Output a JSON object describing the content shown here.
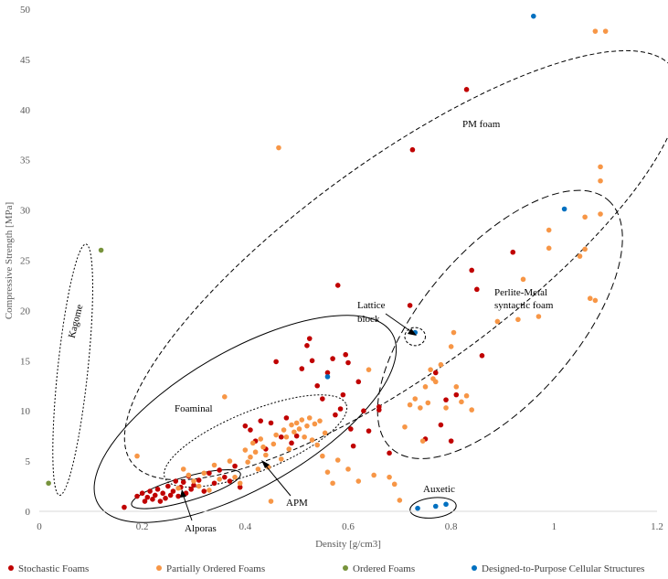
{
  "chart_data": {
    "type": "scatter",
    "xlabel": "Density [g/cm3]",
    "ylabel": "Compressive Strength [MPa]",
    "xlim": [
      0,
      1.2
    ],
    "ylim": [
      0,
      50
    ],
    "x_ticks": [
      "0",
      "0.2",
      "0.4",
      "0.6",
      "0.8",
      "1",
      "1.2"
    ],
    "y_ticks": [
      "0",
      "5",
      "10",
      "15",
      "20",
      "25",
      "30",
      "35",
      "40",
      "45",
      "50"
    ],
    "grid": false,
    "legend_position": "bottom",
    "series": [
      {
        "name": "Stochastic Foams",
        "color": "#C00000",
        "points": [
          [
            0.165,
            0.4
          ],
          [
            0.19,
            1.5
          ],
          [
            0.2,
            1.8
          ],
          [
            0.205,
            1.0
          ],
          [
            0.21,
            1.4
          ],
          [
            0.215,
            2.0
          ],
          [
            0.22,
            1.2
          ],
          [
            0.225,
            1.6
          ],
          [
            0.23,
            2.2
          ],
          [
            0.235,
            1.0
          ],
          [
            0.24,
            1.8
          ],
          [
            0.245,
            1.3
          ],
          [
            0.25,
            2.5
          ],
          [
            0.255,
            1.6
          ],
          [
            0.26,
            2.0
          ],
          [
            0.265,
            3.0
          ],
          [
            0.27,
            1.5
          ],
          [
            0.275,
            2.4
          ],
          [
            0.28,
            2.9
          ],
          [
            0.285,
            1.8
          ],
          [
            0.29,
            3.5
          ],
          [
            0.295,
            2.2
          ],
          [
            0.3,
            2.6
          ],
          [
            0.31,
            3.1
          ],
          [
            0.32,
            2.0
          ],
          [
            0.33,
            3.8
          ],
          [
            0.34,
            2.8
          ],
          [
            0.35,
            4.1
          ],
          [
            0.36,
            3.4
          ],
          [
            0.37,
            3.0
          ],
          [
            0.38,
            4.5
          ],
          [
            0.39,
            2.4
          ],
          [
            0.4,
            8.5
          ],
          [
            0.41,
            8.1
          ],
          [
            0.42,
            7.0
          ],
          [
            0.43,
            9.0
          ],
          [
            0.44,
            6.2
          ],
          [
            0.45,
            8.8
          ],
          [
            0.46,
            14.9
          ],
          [
            0.47,
            7.4
          ],
          [
            0.48,
            9.3
          ],
          [
            0.49,
            6.8
          ],
          [
            0.5,
            7.5
          ],
          [
            0.51,
            14.2
          ],
          [
            0.52,
            16.5
          ],
          [
            0.525,
            17.2
          ],
          [
            0.53,
            15.0
          ],
          [
            0.54,
            12.5
          ],
          [
            0.55,
            11.2
          ],
          [
            0.56,
            13.8
          ],
          [
            0.57,
            15.2
          ],
          [
            0.575,
            9.6
          ],
          [
            0.58,
            22.5
          ],
          [
            0.585,
            10.2
          ],
          [
            0.59,
            11.6
          ],
          [
            0.595,
            15.6
          ],
          [
            0.6,
            14.8
          ],
          [
            0.605,
            8.2
          ],
          [
            0.61,
            6.5
          ],
          [
            0.62,
            12.9
          ],
          [
            0.63,
            10.0
          ],
          [
            0.64,
            8.0
          ],
          [
            0.66,
            10.4
          ],
          [
            0.66,
            10.1
          ],
          [
            0.68,
            5.8
          ],
          [
            0.72,
            20.5
          ],
          [
            0.725,
            36.0
          ],
          [
            0.75,
            7.2
          ],
          [
            0.77,
            13.8
          ],
          [
            0.78,
            8.6
          ],
          [
            0.79,
            11.1
          ],
          [
            0.8,
            7.0
          ],
          [
            0.81,
            11.6
          ],
          [
            0.83,
            42.0
          ],
          [
            0.84,
            24.0
          ],
          [
            0.85,
            22.1
          ],
          [
            0.86,
            15.5
          ],
          [
            0.92,
            25.8
          ]
        ]
      },
      {
        "name": "Partially Ordered Foams",
        "color": "#F79646",
        "points": [
          [
            0.19,
            5.5
          ],
          [
            0.27,
            2.3
          ],
          [
            0.28,
            4.2
          ],
          [
            0.29,
            3.6
          ],
          [
            0.3,
            3.0
          ],
          [
            0.31,
            2.5
          ],
          [
            0.32,
            3.8
          ],
          [
            0.33,
            2.1
          ],
          [
            0.34,
            4.6
          ],
          [
            0.35,
            3.2
          ],
          [
            0.36,
            11.4
          ],
          [
            0.37,
            5.0
          ],
          [
            0.38,
            3.4
          ],
          [
            0.39,
            2.8
          ],
          [
            0.4,
            6.1
          ],
          [
            0.405,
            4.9
          ],
          [
            0.41,
            5.4
          ],
          [
            0.415,
            6.8
          ],
          [
            0.42,
            5.9
          ],
          [
            0.425,
            4.2
          ],
          [
            0.43,
            7.2
          ],
          [
            0.435,
            6.4
          ],
          [
            0.44,
            5.6
          ],
          [
            0.445,
            4.4
          ],
          [
            0.45,
            1.0
          ],
          [
            0.455,
            6.7
          ],
          [
            0.46,
            7.6
          ],
          [
            0.465,
            36.2
          ],
          [
            0.47,
            5.2
          ],
          [
            0.475,
            8.1
          ],
          [
            0.48,
            7.4
          ],
          [
            0.485,
            6.2
          ],
          [
            0.49,
            8.6
          ],
          [
            0.495,
            7.9
          ],
          [
            0.5,
            8.8
          ],
          [
            0.505,
            8.2
          ],
          [
            0.51,
            9.1
          ],
          [
            0.515,
            7.4
          ],
          [
            0.52,
            8.5
          ],
          [
            0.525,
            9.3
          ],
          [
            0.53,
            7.1
          ],
          [
            0.535,
            8.7
          ],
          [
            0.54,
            6.6
          ],
          [
            0.545,
            9.0
          ],
          [
            0.55,
            5.5
          ],
          [
            0.555,
            7.8
          ],
          [
            0.56,
            3.9
          ],
          [
            0.57,
            2.8
          ],
          [
            0.58,
            5.1
          ],
          [
            0.6,
            4.2
          ],
          [
            0.62,
            3.0
          ],
          [
            0.64,
            14.1
          ],
          [
            0.65,
            3.6
          ],
          [
            0.68,
            3.4
          ],
          [
            0.69,
            2.7
          ],
          [
            0.7,
            1.1
          ],
          [
            0.71,
            8.4
          ],
          [
            0.72,
            10.6
          ],
          [
            0.73,
            11.2
          ],
          [
            0.74,
            10.3
          ],
          [
            0.745,
            7.0
          ],
          [
            0.75,
            12.4
          ],
          [
            0.755,
            10.8
          ],
          [
            0.76,
            14.1
          ],
          [
            0.765,
            13.2
          ],
          [
            0.77,
            12.9
          ],
          [
            0.78,
            14.6
          ],
          [
            0.79,
            10.3
          ],
          [
            0.8,
            16.4
          ],
          [
            0.805,
            17.8
          ],
          [
            0.81,
            12.4
          ],
          [
            0.82,
            10.9
          ],
          [
            0.83,
            11.5
          ],
          [
            0.84,
            10.1
          ],
          [
            0.89,
            18.9
          ],
          [
            0.93,
            19.1
          ],
          [
            0.94,
            23.1
          ],
          [
            0.97,
            19.4
          ],
          [
            0.99,
            28.0
          ],
          [
            0.99,
            26.2
          ],
          [
            1.05,
            25.4
          ],
          [
            1.06,
            26.1
          ],
          [
            1.06,
            29.3
          ],
          [
            1.07,
            21.2
          ],
          [
            1.08,
            21.0
          ],
          [
            1.08,
            47.8
          ],
          [
            1.09,
            29.6
          ],
          [
            1.09,
            34.3
          ],
          [
            1.09,
            32.9
          ],
          [
            1.1,
            47.8
          ]
        ]
      },
      {
        "name": "Ordered Foams",
        "color": "#77933C",
        "points": [
          [
            0.018,
            2.8
          ],
          [
            0.12,
            26.0
          ]
        ]
      },
      {
        "name": "Designed-to-Purpose Cellular Structures",
        "color": "#0070C0",
        "points": [
          [
            0.56,
            13.4
          ],
          [
            0.73,
            17.8
          ],
          [
            0.735,
            0.3
          ],
          [
            0.77,
            0.5
          ],
          [
            0.79,
            0.7
          ],
          [
            0.96,
            49.3
          ],
          [
            1.02,
            30.1
          ]
        ]
      }
    ],
    "regions": [
      {
        "label": "PM foam",
        "cx": 0.705,
        "cy": 24.5,
        "rx": 0.65,
        "ry": 10.5,
        "rot": -36,
        "dash": "5,3"
      },
      {
        "label": "Perlite-Metal syntactic foam",
        "cx": 0.895,
        "cy": 18.6,
        "rx": 0.32,
        "ry": 7.6,
        "rot": -49,
        "dash": "8,4"
      },
      {
        "label": "Foaminal",
        "cx": 0.4,
        "cy": 9.2,
        "rx": 0.33,
        "ry": 6.8,
        "rot": -30,
        "dash": ""
      },
      {
        "label": "APM",
        "cx": 0.42,
        "cy": 7.0,
        "rx": 0.19,
        "ry": 3.0,
        "rot": -22,
        "dash": "2,2"
      },
      {
        "label": "Alporas",
        "cx": 0.285,
        "cy": 2.2,
        "rx": 0.11,
        "ry": 1.2,
        "rot": -16,
        "dash": ""
      },
      {
        "label": "Kagome",
        "cx": 0.065,
        "cy": 14.1,
        "rx": 0.245,
        "ry": 1.5,
        "rot": -84,
        "dash": "2,2"
      },
      {
        "label": "Lattice block",
        "cx": 0.73,
        "cy": 17.4,
        "rx": 0.02,
        "ry": 0.9,
        "rot": 0,
        "dash": "3,2"
      },
      {
        "label": "Auxetic",
        "cx": 0.765,
        "cy": 0.35,
        "rx": 0.045,
        "ry": 1.0,
        "rot": -6,
        "dash": ""
      }
    ],
    "annotations": {
      "pm_foam": "PM foam",
      "perlite_line1": "Perlite-Metal",
      "perlite_line2": "syntactic foam",
      "foaminal": "Foaminal",
      "apm": "APM",
      "alporas": "Alporas",
      "kagome": "Kagome",
      "lattice_line1": "Lattice",
      "lattice_line2": "block",
      "auxetic": "Auxetic"
    }
  }
}
